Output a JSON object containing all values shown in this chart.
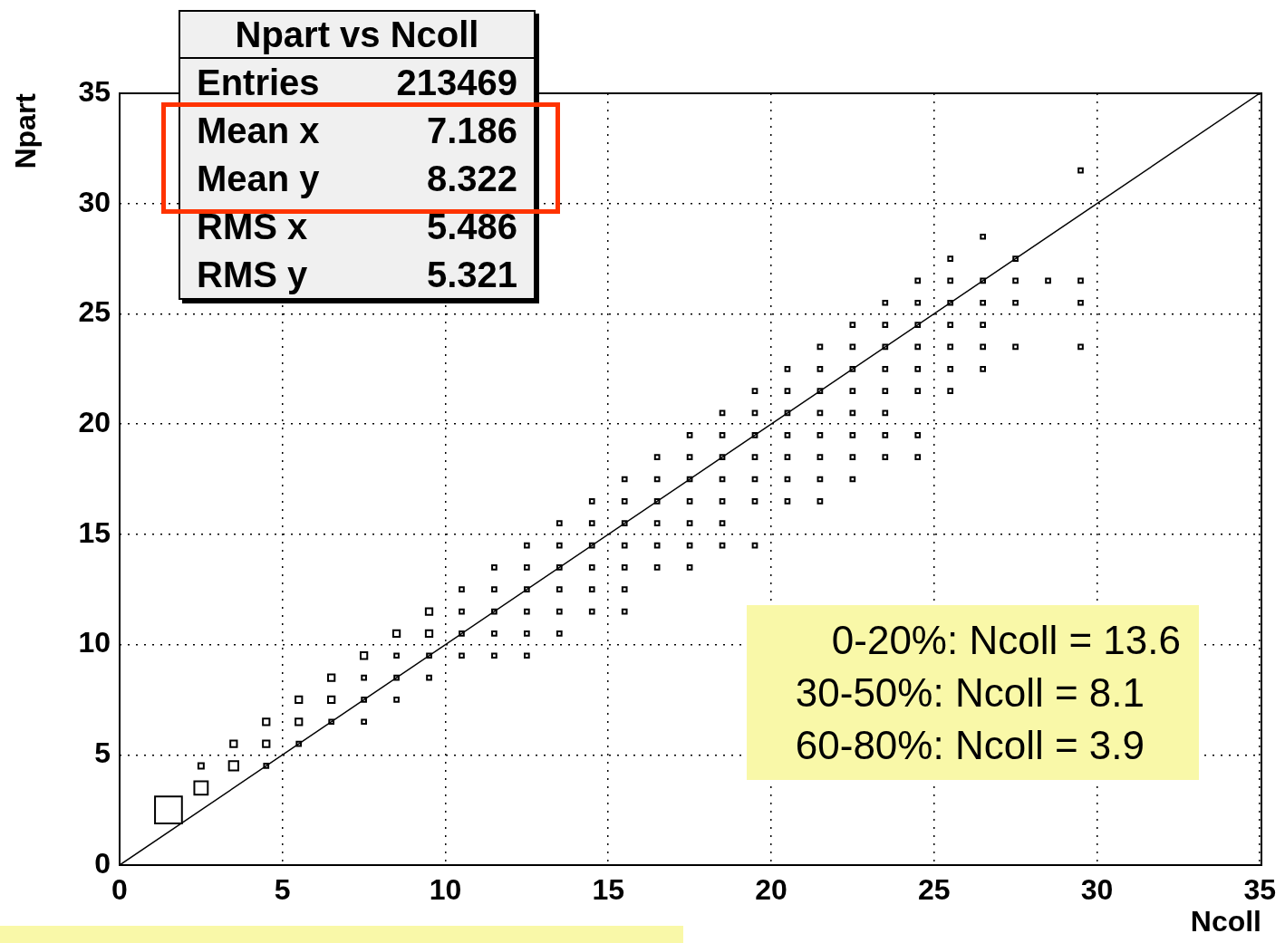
{
  "chart_data": {
    "type": "bubble",
    "title": "Npart vs Ncoll",
    "xlabel": "Ncoll",
    "ylabel": "Npart",
    "xlim": [
      0,
      35
    ],
    "ylim": [
      0,
      35
    ],
    "xticks": [
      0,
      5,
      10,
      15,
      20,
      25,
      30,
      35
    ],
    "yticks": [
      0,
      5,
      10,
      15,
      20,
      25,
      30,
      35
    ],
    "grid": true,
    "legend": false,
    "marker": "square",
    "annotations": [
      "Entries",
      "213469",
      "Mean x",
      "7.186",
      "Mean y",
      "8.322",
      "RMS x",
      "5.486",
      "RMS y",
      "5.321",
      "0-20%: Ncoll = 13.6",
      "30-50%: Ncoll = 8.1",
      "60-80%: Ncoll = 3.9"
    ],
    "series": [
      {
        "color": "#000000",
        "x": [
          1.5,
          2.5,
          2.5,
          3.5,
          3.5,
          4.5,
          4.5,
          4.5,
          5.5,
          5.5,
          5.5,
          6.5,
          6.5,
          6.5,
          7.5,
          7.5,
          7.5,
          7.5,
          8.5,
          8.5,
          8.5,
          8.5,
          9.5,
          9.5,
          9.5,
          9.5,
          10.5,
          10.5,
          10.5,
          10.5,
          11.5,
          11.5,
          11.5,
          11.5,
          11.5,
          12.5,
          12.5,
          12.5,
          12.5,
          12.5,
          12.5,
          13.5,
          13.5,
          13.5,
          13.5,
          13.5,
          13.5,
          14.5,
          14.5,
          14.5,
          14.5,
          14.5,
          14.5,
          15.5,
          15.5,
          15.5,
          15.5,
          15.5,
          15.5,
          15.5,
          16.5,
          16.5,
          16.5,
          16.5,
          16.5,
          16.5,
          17.5,
          17.5,
          17.5,
          17.5,
          17.5,
          17.5,
          17.5,
          18.5,
          18.5,
          18.5,
          18.5,
          18.5,
          18.5,
          18.5,
          19.5,
          19.5,
          19.5,
          19.5,
          19.5,
          19.5,
          19.5,
          20.5,
          20.5,
          20.5,
          20.5,
          20.5,
          20.5,
          20.5,
          21.5,
          21.5,
          21.5,
          21.5,
          21.5,
          21.5,
          21.5,
          21.5,
          22.5,
          22.5,
          22.5,
          22.5,
          22.5,
          22.5,
          22.5,
          22.5,
          23.5,
          23.5,
          23.5,
          23.5,
          23.5,
          23.5,
          23.5,
          23.5,
          24.5,
          24.5,
          24.5,
          24.5,
          24.5,
          24.5,
          24.5,
          24.5,
          25.5,
          25.5,
          25.5,
          25.5,
          25.5,
          25.5,
          25.5,
          26.5,
          26.5,
          26.5,
          26.5,
          26.5,
          26.5,
          27.5,
          27.5,
          27.5,
          27.5,
          28.5,
          29.5,
          29.5,
          29.5,
          29.5
        ],
        "values": [
          2.5,
          3.5,
          4.5,
          4.5,
          5.5,
          4.5,
          5.5,
          6.5,
          5.5,
          6.5,
          7.5,
          6.5,
          7.5,
          8.5,
          6.5,
          7.5,
          8.5,
          9.5,
          7.5,
          8.5,
          9.5,
          10.5,
          8.5,
          9.5,
          10.5,
          11.5,
          9.5,
          10.5,
          11.5,
          12.5,
          9.5,
          10.5,
          11.5,
          12.5,
          13.5,
          9.5,
          10.5,
          11.5,
          12.5,
          13.5,
          14.5,
          10.5,
          11.5,
          12.5,
          13.5,
          14.5,
          15.5,
          11.5,
          12.5,
          13.5,
          14.5,
          15.5,
          16.5,
          11.5,
          12.5,
          13.5,
          14.5,
          15.5,
          16.5,
          17.5,
          13.5,
          14.5,
          15.5,
          16.5,
          17.5,
          18.5,
          13.5,
          14.5,
          15.5,
          16.5,
          17.5,
          18.5,
          19.5,
          14.5,
          15.5,
          16.5,
          17.5,
          18.5,
          19.5,
          20.5,
          14.5,
          16.5,
          17.5,
          18.5,
          19.5,
          20.5,
          21.5,
          16.5,
          17.5,
          18.5,
          19.5,
          20.5,
          21.5,
          22.5,
          16.5,
          17.5,
          18.5,
          19.5,
          20.5,
          21.5,
          22.5,
          23.5,
          17.5,
          18.5,
          19.5,
          20.5,
          21.5,
          22.5,
          23.5,
          24.5,
          18.5,
          19.5,
          20.5,
          21.5,
          22.5,
          23.5,
          24.5,
          25.5,
          18.5,
          19.5,
          21.5,
          22.5,
          23.5,
          24.5,
          25.5,
          26.5,
          21.5,
          22.5,
          23.5,
          24.5,
          25.5,
          26.5,
          27.5,
          22.5,
          23.5,
          24.5,
          25.5,
          26.5,
          28.5,
          23.5,
          25.5,
          26.5,
          27.5,
          26.5,
          23.5,
          25.5,
          26.5,
          31.5
        ],
        "sizes": [
          1,
          0.25,
          0.04,
          0.12,
          0.06,
          0.025,
          0.06,
          0.06,
          0.025,
          0.06,
          0.06,
          0.025,
          0.06,
          0.06,
          0.025,
          0.025,
          0.025,
          0.06,
          0.025,
          0.025,
          0.025,
          0.06,
          0.025,
          0.025,
          0.06,
          0.06,
          0.025,
          0.025,
          0.025,
          0.025,
          0.025,
          0.025,
          0.025,
          0.025,
          0.025,
          0.025,
          0.025,
          0.025,
          0.025,
          0.025,
          0.025,
          0.025,
          0.025,
          0.025,
          0.025,
          0.025,
          0.025,
          0.025,
          0.025,
          0.025,
          0.025,
          0.025,
          0.025,
          0.025,
          0.025,
          0.025,
          0.025,
          0.025,
          0.025,
          0.025,
          0.025,
          0.025,
          0.025,
          0.025,
          0.025,
          0.025,
          0.025,
          0.025,
          0.025,
          0.025,
          0.025,
          0.025,
          0.025,
          0.025,
          0.025,
          0.025,
          0.025,
          0.025,
          0.025,
          0.025,
          0.025,
          0.025,
          0.025,
          0.025,
          0.025,
          0.025,
          0.025,
          0.025,
          0.025,
          0.025,
          0.025,
          0.025,
          0.025,
          0.025,
          0.025,
          0.025,
          0.025,
          0.025,
          0.025,
          0.025,
          0.025,
          0.025,
          0.025,
          0.025,
          0.025,
          0.025,
          0.025,
          0.025,
          0.025,
          0.025,
          0.025,
          0.025,
          0.025,
          0.025,
          0.025,
          0.025,
          0.025,
          0.025,
          0.025,
          0.025,
          0.025,
          0.025,
          0.025,
          0.025,
          0.025,
          0.025,
          0.025,
          0.025,
          0.025,
          0.025,
          0.025,
          0.025,
          0.025,
          0.025,
          0.025,
          0.025,
          0.025,
          0.025,
          0.025,
          0.025,
          0.025,
          0.025,
          0.025,
          0.025,
          0.025,
          0.025,
          0.025,
          0.025
        ]
      },
      {
        "type": "line",
        "marker": "none",
        "color": "#000000",
        "x": [
          0,
          35
        ],
        "values": [
          0,
          35
        ]
      }
    ]
  }
}
